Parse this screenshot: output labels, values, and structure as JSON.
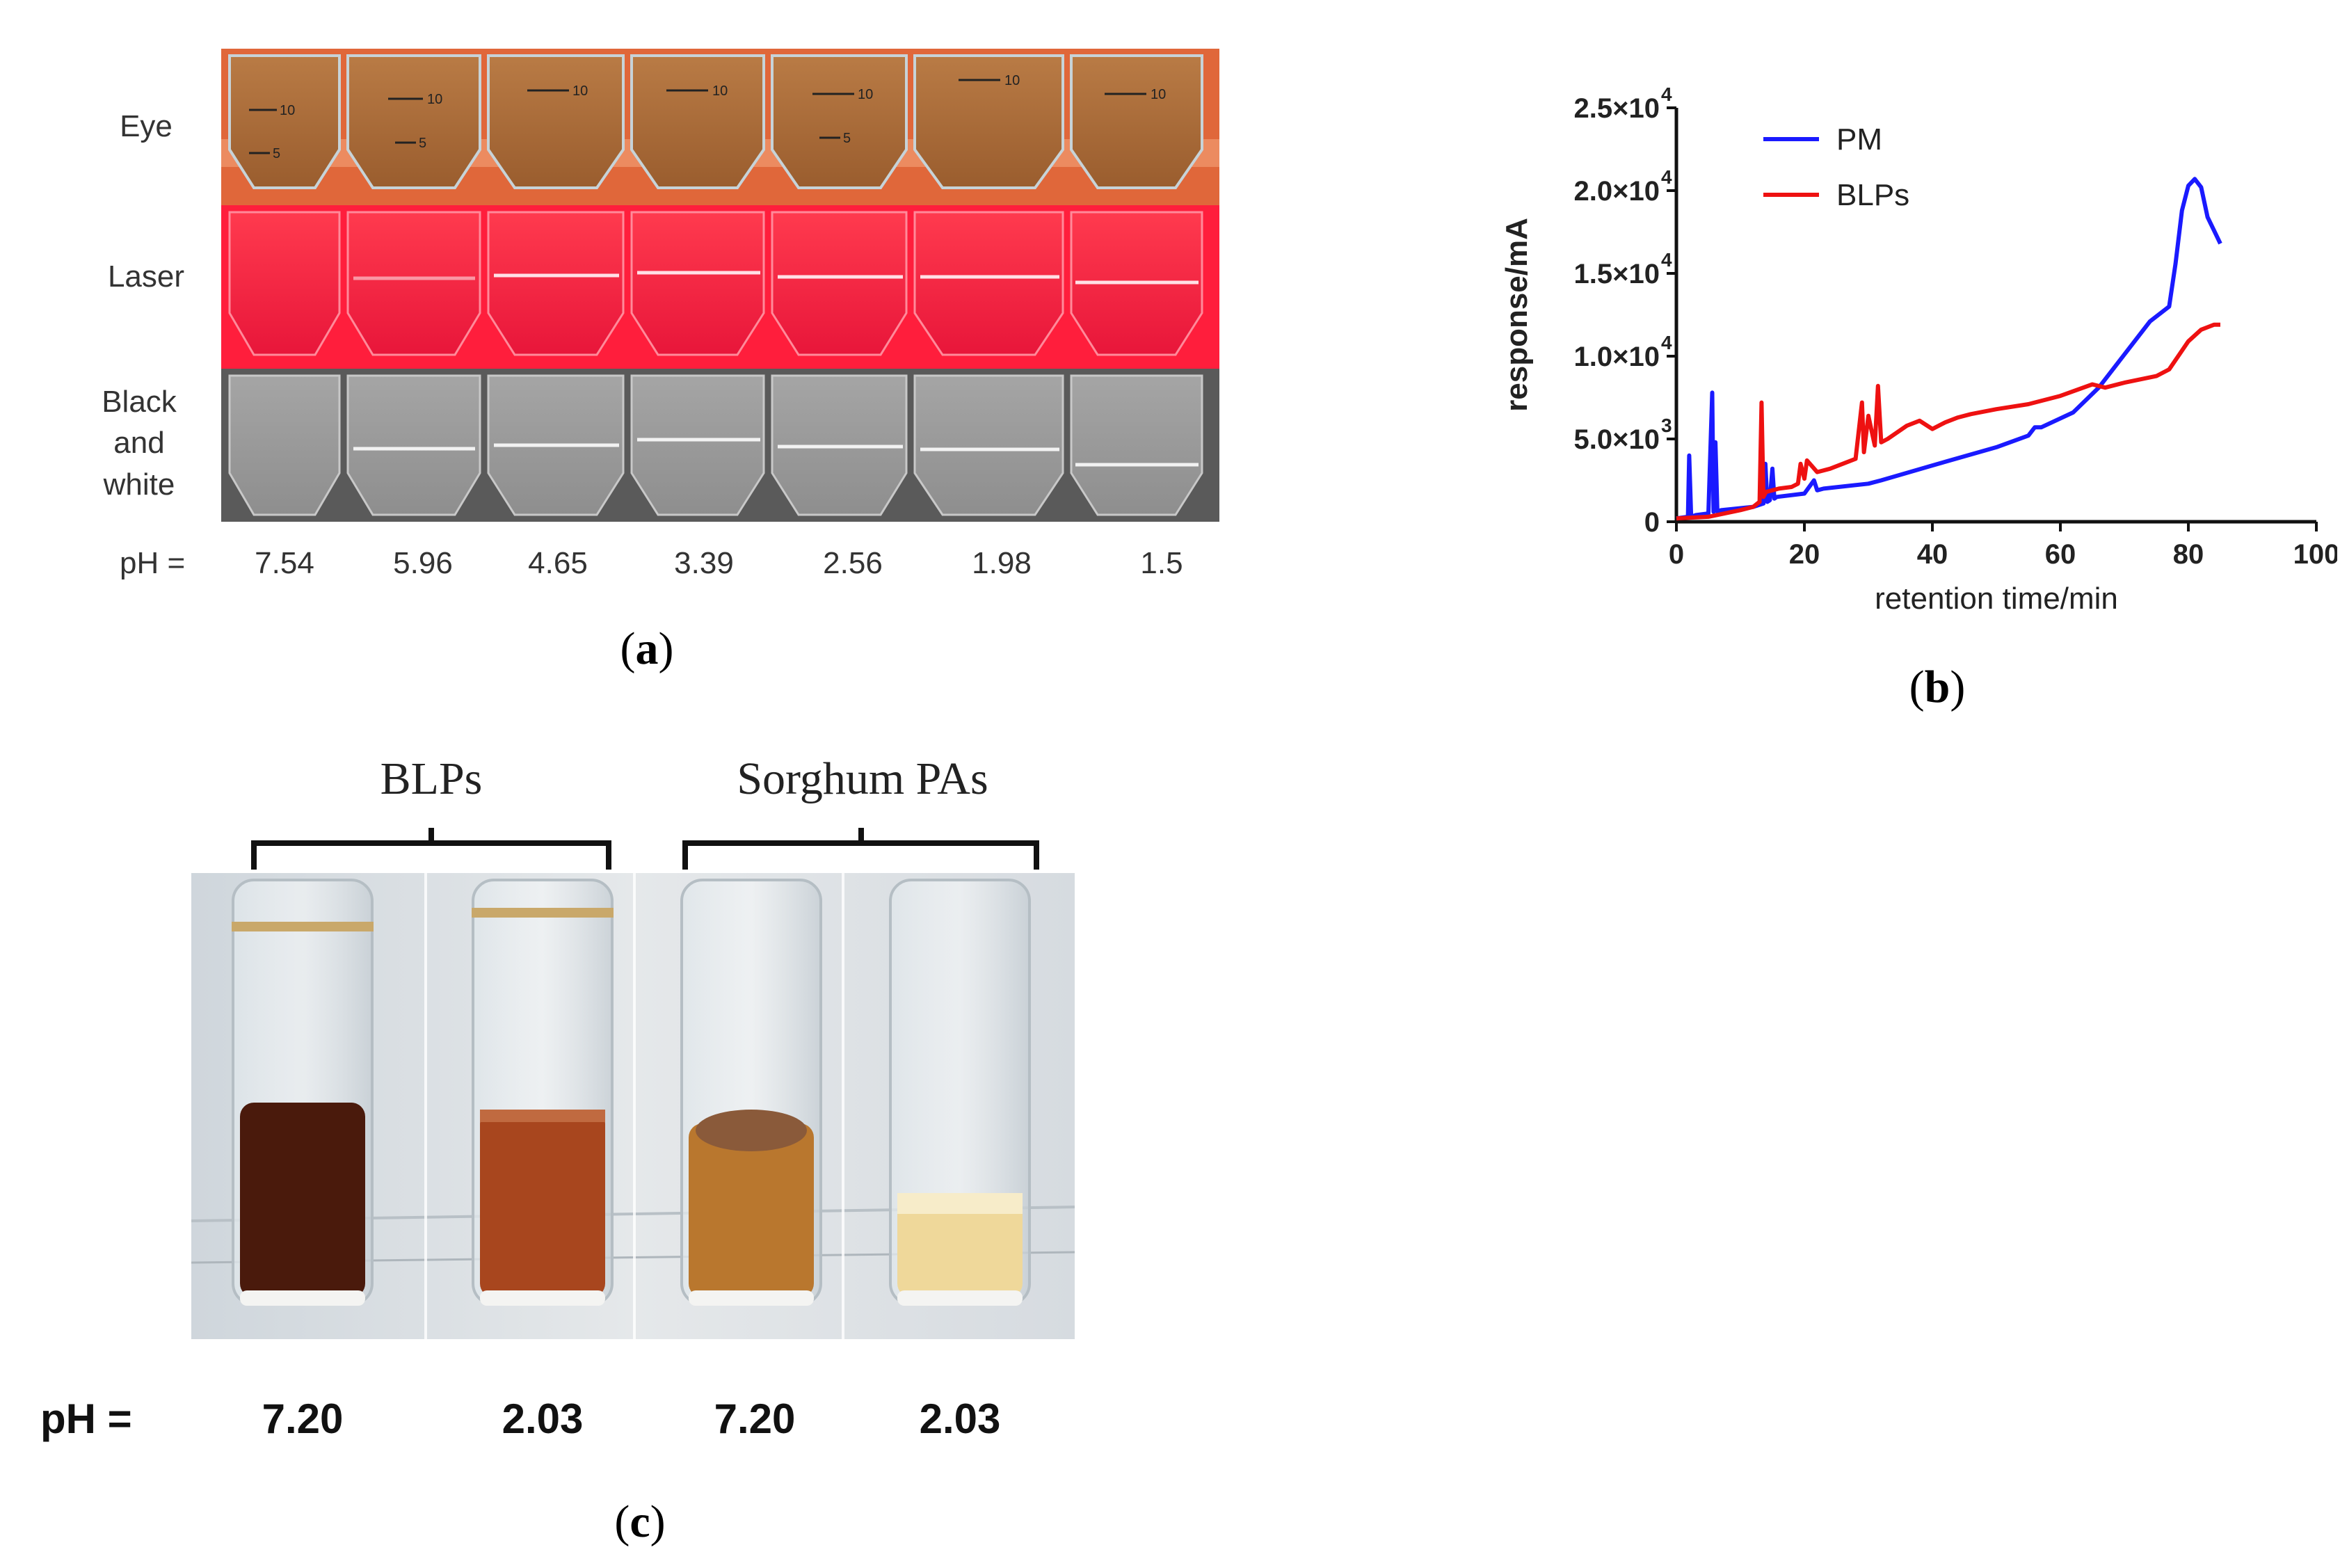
{
  "panel_a": {
    "row_labels": {
      "eye": "Eye",
      "laser": "Laser",
      "bw_line1": "Black",
      "bw_line2": "and",
      "bw_line3": "white"
    },
    "ph_label": "pH =",
    "ph_values": [
      "7.54",
      "5.96",
      "4.65",
      "3.39",
      "2.56",
      "1.98",
      "1.5"
    ],
    "tube_marks": {
      "ten": "10",
      "five": "5"
    },
    "caption_letter": "a"
  },
  "panel_b": {
    "caption_letter": "b"
  },
  "panel_c": {
    "group_labels": {
      "blps": "BLPs",
      "sorghum": "Sorghum PAs"
    },
    "ph_label": "pH =",
    "ph_values": [
      "7.20",
      "2.03",
      "7.20",
      "2.03"
    ],
    "caption_letter": "c"
  },
  "chart_data": {
    "type": "line",
    "xlabel": "retention time/min",
    "ylabel": "response/mA",
    "xlim": [
      0,
      100
    ],
    "ylim": [
      0,
      25000
    ],
    "x_ticks": [
      "0",
      "20",
      "40",
      "60",
      "80",
      "100"
    ],
    "y_ticks": [
      {
        "value": 0,
        "mant": "0",
        "exp": ""
      },
      {
        "value": 5000,
        "mant": "5.0×10",
        "exp": "3"
      },
      {
        "value": 10000,
        "mant": "1.0×10",
        "exp": "4"
      },
      {
        "value": 15000,
        "mant": "1.5×10",
        "exp": "4"
      },
      {
        "value": 20000,
        "mant": "2.0×10",
        "exp": "4"
      },
      {
        "value": 25000,
        "mant": "2.5×10",
        "exp": "4"
      }
    ],
    "legend_position": "top-left",
    "series": [
      {
        "name": "PM",
        "color": "#1a1aff",
        "x": [
          0,
          1.8,
          2.0,
          2.3,
          3,
          5,
          5.6,
          5.8,
          6.1,
          6.4,
          7,
          12,
          13.6,
          13.9,
          14.2,
          14.6,
          15,
          15.3,
          15.7,
          20,
          21.5,
          22,
          23,
          30,
          32,
          40,
          50,
          55,
          56,
          57,
          62,
          66,
          70,
          74,
          77,
          78,
          79,
          80,
          81,
          82,
          83,
          84,
          85
        ],
        "y": [
          200,
          300,
          4000,
          300,
          400,
          500,
          7800,
          600,
          4800,
          600,
          700,
          900,
          1100,
          3500,
          1200,
          1300,
          3200,
          1400,
          1500,
          1700,
          2500,
          1900,
          2000,
          2300,
          2500,
          3400,
          4500,
          5200,
          5700,
          5700,
          6600,
          8100,
          10100,
          12100,
          13000,
          15600,
          18800,
          20300,
          20700,
          20200,
          18400,
          17600,
          16800
        ]
      },
      {
        "name": "BLPs",
        "color": "#ee1111",
        "x": [
          0,
          5,
          10,
          12,
          13,
          13.3,
          13.6,
          14,
          15,
          16,
          18,
          19,
          19.4,
          20,
          20.4,
          22,
          24,
          26,
          28,
          29,
          29.3,
          30,
          31,
          31.5,
          32,
          33,
          36,
          38,
          40,
          42,
          44,
          46,
          50,
          55,
          60,
          65,
          67,
          70,
          75,
          77,
          80,
          82,
          84,
          85
        ],
        "y": [
          200,
          300,
          700,
          900,
          1200,
          7200,
          1500,
          1800,
          1900,
          2000,
          2100,
          2300,
          3500,
          2600,
          3700,
          3000,
          3200,
          3500,
          3800,
          7200,
          4200,
          6400,
          4600,
          8200,
          4800,
          5000,
          5800,
          6100,
          5600,
          6000,
          6300,
          6500,
          6800,
          7100,
          7600,
          8300,
          8100,
          8400,
          8800,
          9200,
          10900,
          11600,
          11900,
          11900
        ]
      }
    ]
  }
}
